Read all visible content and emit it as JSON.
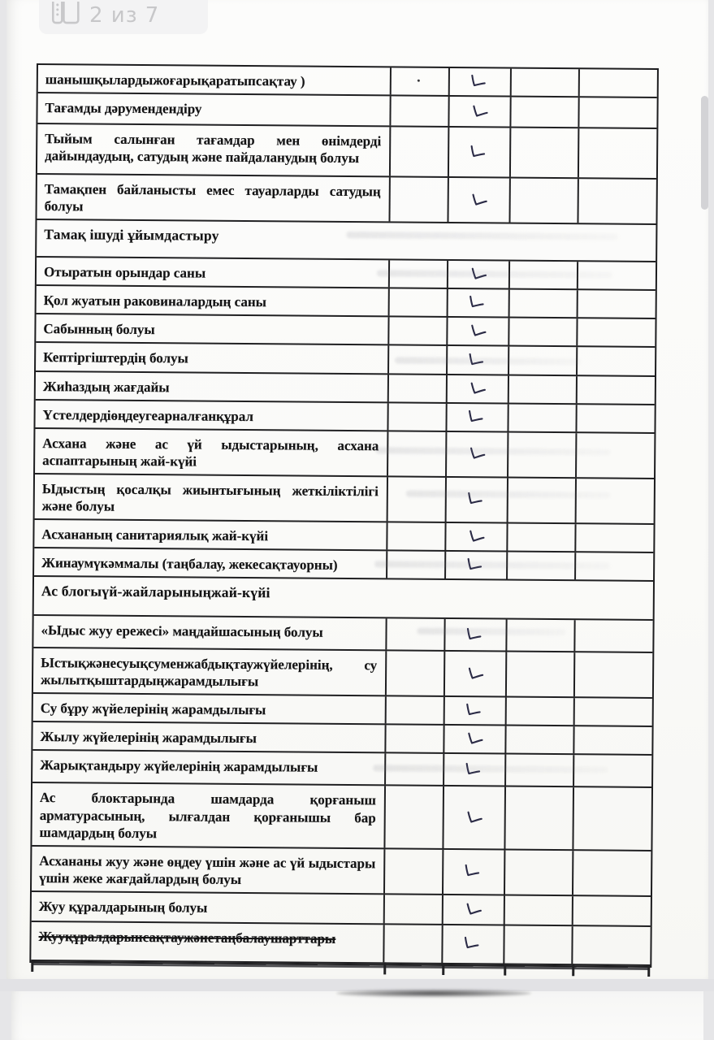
{
  "viewer": {
    "page_indicator": "2 из 7",
    "icon": "pages-icon"
  },
  "colors": {
    "ink": "#1d1d1f",
    "check_ink": "#2b2b46",
    "badge_gray": "#c7c7c9",
    "paper": "#fbfbfa",
    "background": "#e6e6e8"
  },
  "table": {
    "mark_columns": 4,
    "check_mark": "✓",
    "checked_column_index": 2,
    "rows": [
      {
        "label": "шанышқылардыжоғарықаратыпсақтау )",
        "type": "item",
        "checked": true,
        "ink_dot": true
      },
      {
        "label": "Тағамды дәрумендендіру",
        "type": "item",
        "checked": true
      },
      {
        "label": "Тыйым салынған тағамдар мен өнімдерді дайындаудың, сатудың және пайдаланудың болуы",
        "type": "item",
        "checked": true
      },
      {
        "label": "Тамақпен байланысты емес тауарларды сатудың болуы",
        "type": "item",
        "checked": true
      },
      {
        "label": "Тамақ ішуді ұйымдастыру",
        "type": "section",
        "checked": false
      },
      {
        "label": "Отыратын орындар саны",
        "type": "item",
        "checked": true
      },
      {
        "label": "Қол жуатын раковиналардың саны",
        "type": "item",
        "checked": true
      },
      {
        "label": "Сабынның болуы",
        "type": "item",
        "checked": true
      },
      {
        "label": "Кептіргіштердің болуы",
        "type": "item",
        "checked": true
      },
      {
        "label": "Жиһаздың жағдайы",
        "type": "item",
        "checked": true
      },
      {
        "label": "Үстелдердіөңдеугеарналғанқұрал",
        "type": "item",
        "checked": true
      },
      {
        "label": "Асхана және ас үй ыдыстарының, асхана аспаптарының жай-күйі",
        "type": "item",
        "checked": true
      },
      {
        "label": "Ыдыстың қосалқы жиынтығының жеткіліктілігі және болуы",
        "type": "item",
        "checked": true
      },
      {
        "label": "Асхананың санитариялық жай-күйі",
        "type": "item",
        "checked": true
      },
      {
        "label": "Жинаумүкәммалы (таңбалау, жекесақтауорны)",
        "type": "item",
        "checked": true
      },
      {
        "label": "Ас блогыүй-жайларыныңжай-күйі",
        "type": "section",
        "checked": false
      },
      {
        "label": "«Ыдыс жуу ережесі» маңдайшасының болуы",
        "type": "item",
        "checked": true
      },
      {
        "label": "Ыстықжәнесуықсуменжабдықтаужүйелерінің, су жылытқыштардыңжарамдылығы",
        "type": "item",
        "checked": true
      },
      {
        "label": "Су бұру жүйелерінің жарамдылығы",
        "type": "item",
        "checked": true
      },
      {
        "label": "Жылу жүйелерінің жарамдылығы",
        "type": "item",
        "checked": true
      },
      {
        "label": "Жарықтандыру жүйелерінің жарамдылығы",
        "type": "item",
        "checked": true
      },
      {
        "label": "Ас блоктарында шамдарда қорғаныш арматурасының, ылғалдан қорғанышы бар шамдардың болуы",
        "type": "item",
        "checked": true
      },
      {
        "label": "Асхананы жуу және өңдеу үшін және ас үй ыдыстары үшін жеке жағдайлардың болуы",
        "type": "item",
        "checked": true
      },
      {
        "label": "Жуу құралдарының болуы",
        "type": "item",
        "checked": true
      },
      {
        "label": "Жууқұралдарынсақтаужәнетаңбалаушарттары",
        "type": "item",
        "checked": true,
        "strikethrough": true
      }
    ]
  }
}
